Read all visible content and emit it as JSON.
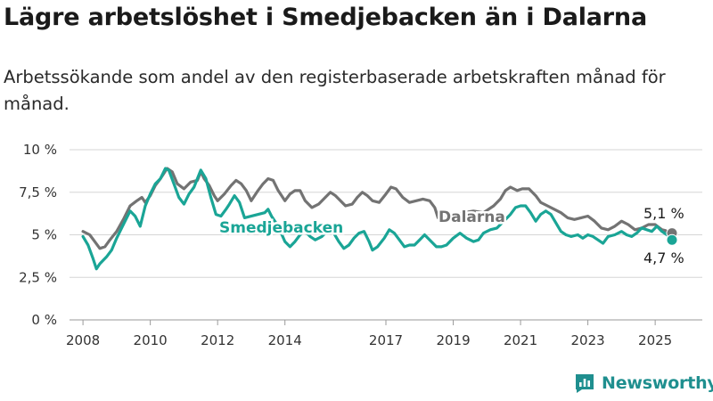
{
  "title": "Lägre arbetslöshet i Smedjebacken än i Dalarna",
  "subtitle": "Arbetssökande som andel av den registerbaserade arbetskraften månad för månad.",
  "brand": {
    "name": "Newsworthy"
  },
  "colors": {
    "dalarna": "#737373",
    "smedjebacken": "#1aa596",
    "grid": "#d5d5d5",
    "brand": "#1f8f8f"
  },
  "chart_data": {
    "type": "line",
    "title": "",
    "xlabel": "",
    "ylabel": "",
    "xlim": [
      2007.6,
      2026.4
    ],
    "ylim": [
      0,
      10
    ],
    "x_ticks": [
      {
        "value": 2008,
        "label": "2008"
      },
      {
        "value": 2010,
        "label": "2010"
      },
      {
        "value": 2012,
        "label": "2012"
      },
      {
        "value": 2014,
        "label": "2014"
      },
      {
        "value": 2017,
        "label": "2017"
      },
      {
        "value": 2019,
        "label": "2019"
      },
      {
        "value": 2021,
        "label": "2021"
      },
      {
        "value": 2023,
        "label": "2023"
      },
      {
        "value": 2025,
        "label": "2025"
      }
    ],
    "y_ticks": [
      {
        "value": 0,
        "label": "0 %"
      },
      {
        "value": 2.5,
        "label": "2,5 %"
      },
      {
        "value": 5,
        "label": "5 %"
      },
      {
        "value": 7.5,
        "label": "7,5 %"
      },
      {
        "value": 10,
        "label": "10 %"
      }
    ],
    "grid": true,
    "series": [
      {
        "name": "Dalarna",
        "color": "#737373",
        "end_label": "5,1 %",
        "points": [
          [
            2008.0,
            5.2
          ],
          [
            2008.2,
            5.0
          ],
          [
            2008.35,
            4.6
          ],
          [
            2008.5,
            4.2
          ],
          [
            2008.65,
            4.3
          ],
          [
            2008.8,
            4.7
          ],
          [
            2009.0,
            5.2
          ],
          [
            2009.2,
            5.9
          ],
          [
            2009.4,
            6.7
          ],
          [
            2009.6,
            7.0
          ],
          [
            2009.75,
            7.2
          ],
          [
            2009.85,
            6.9
          ],
          [
            2010.0,
            7.3
          ],
          [
            2010.15,
            7.9
          ],
          [
            2010.3,
            8.3
          ],
          [
            2010.5,
            8.9
          ],
          [
            2010.65,
            8.7
          ],
          [
            2010.8,
            8.0
          ],
          [
            2011.0,
            7.7
          ],
          [
            2011.2,
            8.1
          ],
          [
            2011.4,
            8.2
          ],
          [
            2011.5,
            8.7
          ],
          [
            2011.6,
            8.3
          ],
          [
            2011.75,
            7.9
          ],
          [
            2011.9,
            7.3
          ],
          [
            2012.0,
            7.0
          ],
          [
            2012.2,
            7.4
          ],
          [
            2012.4,
            7.9
          ],
          [
            2012.55,
            8.2
          ],
          [
            2012.7,
            8.0
          ],
          [
            2012.85,
            7.6
          ],
          [
            2013.0,
            7.0
          ],
          [
            2013.2,
            7.6
          ],
          [
            2013.35,
            8.0
          ],
          [
            2013.5,
            8.3
          ],
          [
            2013.65,
            8.2
          ],
          [
            2013.8,
            7.6
          ],
          [
            2014.0,
            7.0
          ],
          [
            2014.15,
            7.4
          ],
          [
            2014.3,
            7.6
          ],
          [
            2014.45,
            7.6
          ],
          [
            2014.6,
            7.0
          ],
          [
            2014.8,
            6.6
          ],
          [
            2015.0,
            6.8
          ],
          [
            2015.2,
            7.2
          ],
          [
            2015.35,
            7.5
          ],
          [
            2015.5,
            7.3
          ],
          [
            2015.65,
            7.0
          ],
          [
            2015.8,
            6.7
          ],
          [
            2016.0,
            6.8
          ],
          [
            2016.15,
            7.2
          ],
          [
            2016.3,
            7.5
          ],
          [
            2016.45,
            7.3
          ],
          [
            2016.6,
            7.0
          ],
          [
            2016.8,
            6.9
          ],
          [
            2017.0,
            7.4
          ],
          [
            2017.15,
            7.8
          ],
          [
            2017.3,
            7.7
          ],
          [
            2017.5,
            7.2
          ],
          [
            2017.7,
            6.9
          ],
          [
            2017.9,
            7.0
          ],
          [
            2018.1,
            7.1
          ],
          [
            2018.3,
            7.0
          ],
          [
            2018.45,
            6.6
          ],
          [
            2018.55,
            6.0
          ],
          [
            2019.0,
            6.1
          ],
          [
            2019.3,
            6.3
          ],
          [
            2019.6,
            6.4
          ],
          [
            2019.9,
            6.3
          ],
          [
            2020.2,
            6.7
          ],
          [
            2020.4,
            7.1
          ],
          [
            2020.55,
            7.6
          ],
          [
            2020.7,
            7.8
          ],
          [
            2020.9,
            7.6
          ],
          [
            2021.05,
            7.7
          ],
          [
            2021.25,
            7.7
          ],
          [
            2021.45,
            7.3
          ],
          [
            2021.6,
            6.9
          ],
          [
            2021.8,
            6.7
          ],
          [
            2022.0,
            6.5
          ],
          [
            2022.2,
            6.3
          ],
          [
            2022.4,
            6.0
          ],
          [
            2022.6,
            5.9
          ],
          [
            2022.8,
            6.0
          ],
          [
            2023.0,
            6.1
          ],
          [
            2023.2,
            5.8
          ],
          [
            2023.4,
            5.4
          ],
          [
            2023.6,
            5.3
          ],
          [
            2023.8,
            5.5
          ],
          [
            2024.0,
            5.8
          ],
          [
            2024.2,
            5.6
          ],
          [
            2024.4,
            5.3
          ],
          [
            2024.6,
            5.4
          ],
          [
            2024.8,
            5.6
          ],
          [
            2025.0,
            5.6
          ],
          [
            2025.2,
            5.3
          ],
          [
            2025.3,
            5.25
          ],
          [
            2025.4,
            5.15
          ],
          [
            2025.5,
            5.1
          ]
        ]
      },
      {
        "name": "Smedjebacken",
        "color": "#1aa596",
        "end_label": "4,7 %",
        "points": [
          [
            2008.0,
            4.9
          ],
          [
            2008.15,
            4.4
          ],
          [
            2008.3,
            3.6
          ],
          [
            2008.4,
            3.0
          ],
          [
            2008.5,
            3.3
          ],
          [
            2008.7,
            3.7
          ],
          [
            2008.85,
            4.1
          ],
          [
            2009.0,
            4.8
          ],
          [
            2009.2,
            5.6
          ],
          [
            2009.4,
            6.4
          ],
          [
            2009.55,
            6.1
          ],
          [
            2009.7,
            5.5
          ],
          [
            2009.85,
            6.7
          ],
          [
            2010.0,
            7.4
          ],
          [
            2010.15,
            8.0
          ],
          [
            2010.3,
            8.3
          ],
          [
            2010.45,
            8.9
          ],
          [
            2010.55,
            8.8
          ],
          [
            2010.7,
            8.0
          ],
          [
            2010.85,
            7.2
          ],
          [
            2011.0,
            6.8
          ],
          [
            2011.15,
            7.4
          ],
          [
            2011.3,
            7.8
          ],
          [
            2011.5,
            8.8
          ],
          [
            2011.65,
            8.3
          ],
          [
            2011.8,
            7.2
          ],
          [
            2011.95,
            6.2
          ],
          [
            2012.1,
            6.1
          ],
          [
            2012.25,
            6.5
          ],
          [
            2012.35,
            6.8
          ],
          [
            2012.5,
            7.3
          ],
          [
            2012.65,
            6.9
          ],
          [
            2012.8,
            6.0
          ],
          [
            2013.4,
            6.3
          ],
          [
            2013.5,
            6.5
          ],
          [
            2013.6,
            6.1
          ],
          [
            2013.8,
            5.5
          ],
          [
            2014.0,
            4.6
          ],
          [
            2014.15,
            4.3
          ],
          [
            2014.3,
            4.6
          ],
          [
            2014.45,
            5.0
          ],
          [
            2014.6,
            5.2
          ],
          [
            2014.75,
            4.9
          ],
          [
            2014.9,
            4.7
          ],
          [
            2015.1,
            4.9
          ],
          [
            2015.3,
            5.3
          ],
          [
            2015.45,
            5.1
          ],
          [
            2015.6,
            4.6
          ],
          [
            2015.75,
            4.2
          ],
          [
            2015.9,
            4.4
          ],
          [
            2016.05,
            4.8
          ],
          [
            2016.2,
            5.1
          ],
          [
            2016.35,
            5.2
          ],
          [
            2016.5,
            4.6
          ],
          [
            2016.6,
            4.1
          ],
          [
            2016.75,
            4.3
          ],
          [
            2016.95,
            4.8
          ],
          [
            2017.1,
            5.3
          ],
          [
            2017.25,
            5.1
          ],
          [
            2017.4,
            4.7
          ],
          [
            2017.55,
            4.3
          ],
          [
            2017.7,
            4.4
          ],
          [
            2017.85,
            4.4
          ],
          [
            2018.0,
            4.7
          ],
          [
            2018.15,
            5.0
          ],
          [
            2018.3,
            4.7
          ],
          [
            2018.5,
            4.3
          ],
          [
            2018.65,
            4.3
          ],
          [
            2018.8,
            4.4
          ],
          [
            2019.0,
            4.8
          ],
          [
            2019.2,
            5.1
          ],
          [
            2019.4,
            4.8
          ],
          [
            2019.6,
            4.6
          ],
          [
            2019.75,
            4.7
          ],
          [
            2019.9,
            5.1
          ],
          [
            2020.1,
            5.3
          ],
          [
            2020.3,
            5.4
          ],
          [
            2020.5,
            5.8
          ],
          [
            2020.7,
            6.2
          ],
          [
            2020.85,
            6.6
          ],
          [
            2021.0,
            6.7
          ],
          [
            2021.15,
            6.7
          ],
          [
            2021.3,
            6.3
          ],
          [
            2021.45,
            5.8
          ],
          [
            2021.6,
            6.2
          ],
          [
            2021.75,
            6.4
          ],
          [
            2021.9,
            6.2
          ],
          [
            2022.05,
            5.7
          ],
          [
            2022.2,
            5.2
          ],
          [
            2022.35,
            5.0
          ],
          [
            2022.5,
            4.9
          ],
          [
            2022.7,
            5.0
          ],
          [
            2022.85,
            4.8
          ],
          [
            2023.0,
            5.0
          ],
          [
            2023.15,
            4.9
          ],
          [
            2023.3,
            4.7
          ],
          [
            2023.45,
            4.5
          ],
          [
            2023.6,
            4.9
          ],
          [
            2023.8,
            5.0
          ],
          [
            2024.0,
            5.2
          ],
          [
            2024.15,
            5.0
          ],
          [
            2024.3,
            4.9
          ],
          [
            2024.45,
            5.1
          ],
          [
            2024.6,
            5.4
          ],
          [
            2024.75,
            5.3
          ],
          [
            2024.9,
            5.2
          ],
          [
            2025.05,
            5.5
          ],
          [
            2025.2,
            5.2
          ],
          [
            2025.35,
            5.0
          ],
          [
            2025.45,
            4.9
          ],
          [
            2025.5,
            4.7
          ]
        ]
      }
    ]
  }
}
